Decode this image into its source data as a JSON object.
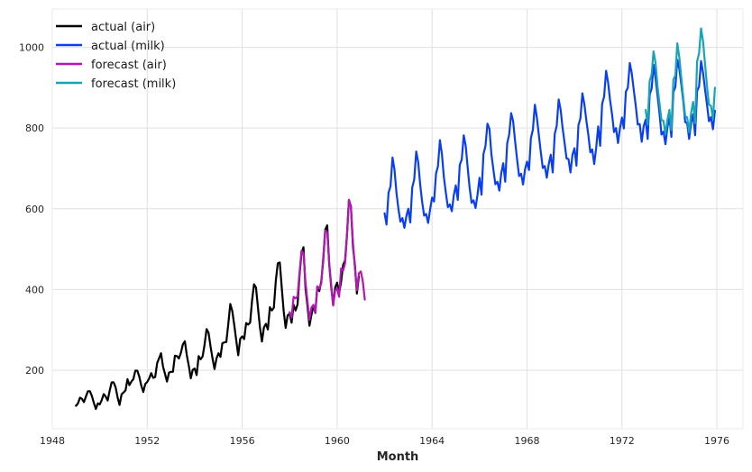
{
  "chart_data": {
    "type": "line",
    "title": "",
    "xlabel": "Month",
    "ylabel": "",
    "xlim": [
      1948.0,
      1977.1
    ],
    "ylim": [
      55,
      1095
    ],
    "x_ticks": [
      1948,
      1952,
      1956,
      1960,
      1964,
      1968,
      1972,
      1976
    ],
    "y_ticks": [
      200,
      400,
      600,
      800,
      1000
    ],
    "grid": true,
    "legend_placement": "top-left",
    "series": [
      {
        "name": "actual (air)",
        "color": "#000000",
        "start": 1949.0,
        "step": 0.0833333,
        "values": [
          112,
          118,
          132,
          129,
          121,
          135,
          148,
          148,
          136,
          119,
          104,
          118,
          115,
          126,
          141,
          135,
          125,
          149,
          170,
          170,
          158,
          133,
          114,
          140,
          145,
          150,
          178,
          163,
          172,
          178,
          199,
          199,
          184,
          162,
          146,
          166,
          171,
          180,
          193,
          181,
          183,
          218,
          230,
          242,
          209,
          191,
          172,
          194,
          196,
          196,
          236,
          235,
          229,
          243,
          264,
          272,
          237,
          211,
          180,
          201,
          204,
          188,
          235,
          227,
          234,
          264,
          302,
          293,
          259,
          229,
          203,
          229,
          242,
          233,
          267,
          269,
          270,
          315,
          364,
          347,
          312,
          274,
          237,
          278,
          284,
          277,
          317,
          313,
          318,
          374,
          413,
          405,
          355,
          306,
          271,
          306,
          315,
          301,
          356,
          348,
          355,
          422,
          465,
          467,
          404,
          347,
          305,
          336,
          340,
          318,
          362,
          348,
          363,
          435,
          491,
          505,
          404,
          359,
          310,
          337,
          360,
          342,
          406,
          396,
          420,
          472,
          548,
          559,
          463,
          407,
          362,
          405,
          417,
          391,
          419,
          461,
          472,
          535,
          622,
          606,
          508,
          461,
          390,
          432
        ]
      },
      {
        "name": "actual (milk)",
        "color": "#0a3ff0",
        "start": 1962.0,
        "step": 0.0833333,
        "values": [
          589,
          561,
          640,
          656,
          727,
          697,
          640,
          599,
          568,
          577,
          553,
          582,
          600,
          566,
          653,
          673,
          742,
          716,
          660,
          617,
          583,
          587,
          565,
          598,
          628,
          618,
          688,
          705,
          770,
          736,
          678,
          639,
          604,
          611,
          594,
          634,
          658,
          622,
          709,
          722,
          782,
          756,
          702,
          653,
          615,
          621,
          602,
          635,
          677,
          635,
          736,
          755,
          811,
          798,
          735,
          697,
          661,
          667,
          645,
          688,
          713,
          667,
          762,
          784,
          837,
          817,
          767,
          722,
          681,
          687,
          660,
          698,
          717,
          696,
          775,
          796,
          858,
          826,
          783,
          740,
          701,
          706,
          677,
          711,
          734,
          690,
          785,
          805,
          871,
          845,
          801,
          764,
          725,
          723,
          690,
          734,
          750,
          707,
          807,
          824,
          886,
          859,
          819,
          783,
          740,
          747,
          711,
          751,
          804,
          756,
          860,
          878,
          942,
          913,
          869,
          834,
          790,
          800,
          763,
          800,
          826,
          799,
          890,
          900,
          961,
          935,
          894,
          855,
          809,
          810,
          766,
          805,
          821,
          773,
          883,
          898,
          957,
          924,
          881,
          837,
          784,
          791,
          760,
          802,
          828,
          778,
          889,
          902,
          969,
          947,
          908,
          867,
          815,
          812,
          773,
          813,
          834,
          782,
          892,
          903,
          966,
          937,
          896,
          858,
          817,
          827,
          797,
          843
        ]
      },
      {
        "name": "forecast (air)",
        "color": "#b217b2",
        "start": 1958.0,
        "step": 0.0833333,
        "values": [
          344,
          330,
          382,
          378,
          383,
          442,
          496,
          490,
          418,
          371,
          325,
          355,
          362,
          344,
          408,
          402,
          415,
          480,
          546,
          542,
          466,
          412,
          360,
          397,
          403,
          382,
          452,
          447,
          465,
          533,
          622,
          605,
          518,
          455,
          398,
          440,
          445,
          420,
          375
        ]
      },
      {
        "name": "forecast (milk)",
        "color": "#17a5b5",
        "start": 1973.0,
        "step": 0.0833333,
        "values": [
          845,
          808,
          917,
          933,
          990,
          962,
          904,
          861,
          820,
          818,
          785,
          820,
          845,
          795,
          920,
          930,
          1010,
          975,
          925,
          875,
          830,
          826,
          790,
          838,
          865,
          812,
          965,
          985,
          1047,
          1015,
          960,
          903,
          858,
          855,
          823,
          900
        ]
      }
    ]
  }
}
